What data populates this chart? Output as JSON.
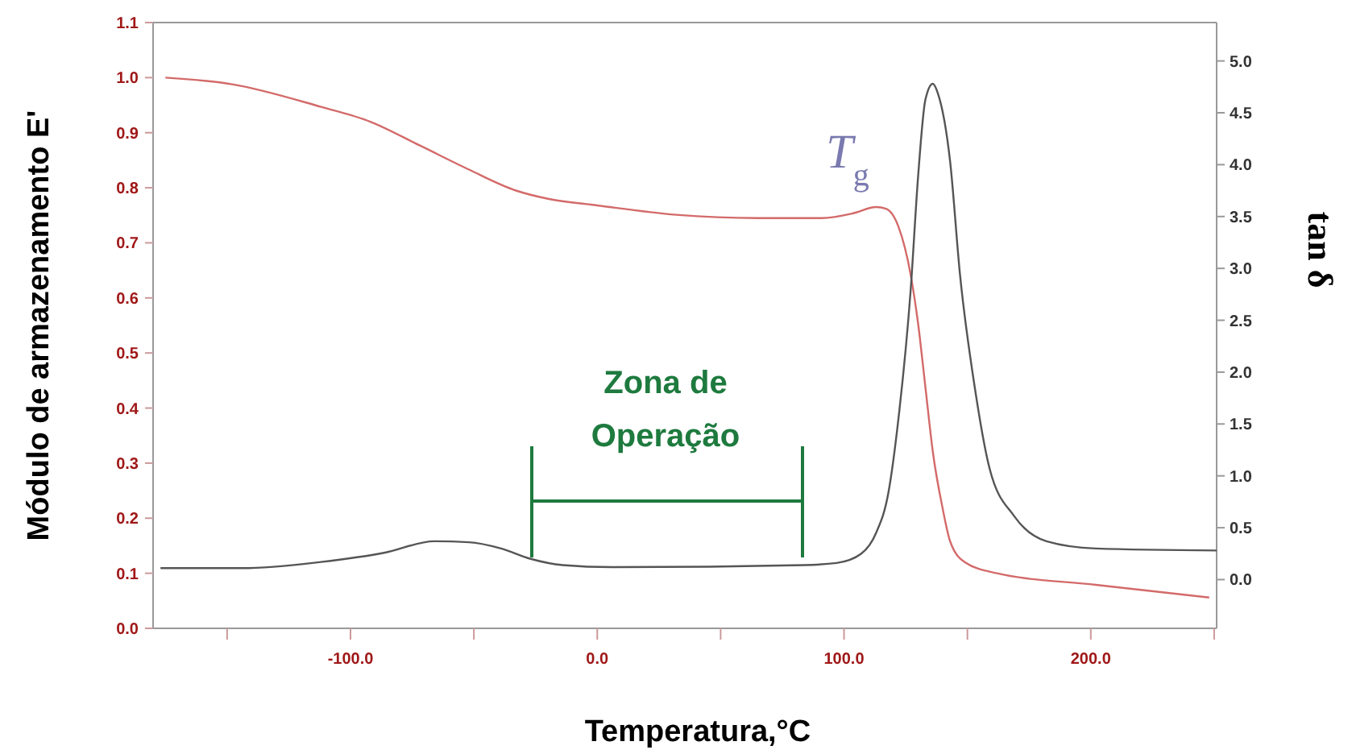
{
  "chart_data": {
    "type": "line",
    "xlabel": "Temperatura,°C",
    "ylabel": "Módulo de armazenamento E'",
    "y2label": "tan δ",
    "xlim": [
      -180,
      251
    ],
    "xticks": [
      {
        "value": -150,
        "label": null
      },
      {
        "value": -100,
        "label": "-100.0"
      },
      {
        "value": -50,
        "label": null
      },
      {
        "value": 0,
        "label": "0.0"
      },
      {
        "value": 50,
        "label": null
      },
      {
        "value": 100,
        "label": "100.0"
      },
      {
        "value": 150,
        "label": null
      },
      {
        "value": 200,
        "label": "200.0"
      },
      {
        "value": 250,
        "label": null
      }
    ],
    "ylim": [
      0,
      1.1
    ],
    "yticks": [
      {
        "value": 0,
        "label": "0.0"
      },
      {
        "value": 0.1,
        "label": "0.1"
      },
      {
        "value": 0.2,
        "label": "0.2"
      },
      {
        "value": 0.3,
        "label": "0.3"
      },
      {
        "value": 0.4,
        "label": "0.4"
      },
      {
        "value": 0.5,
        "label": "0.5"
      },
      {
        "value": 0.6,
        "label": "0.6"
      },
      {
        "value": 0.7,
        "label": "0.7"
      },
      {
        "value": 0.8,
        "label": "0.8"
      },
      {
        "value": 0.9,
        "label": "0.9"
      },
      {
        "value": 1,
        "label": "1.0"
      },
      {
        "value": 1.1,
        "label": "1.1"
      }
    ],
    "y2lim": [
      -0.47,
      5.37
    ],
    "y2ticks": [
      {
        "value": 0,
        "label": "0.0"
      },
      {
        "value": 0.5,
        "label": "0.5"
      },
      {
        "value": 1,
        "label": "1.0"
      },
      {
        "value": 1.5,
        "label": "1.5"
      },
      {
        "value": 2,
        "label": "2.0"
      },
      {
        "value": 2.5,
        "label": "2.5"
      },
      {
        "value": 3,
        "label": "3.0"
      },
      {
        "value": 3.5,
        "label": "3.5"
      },
      {
        "value": 4,
        "label": "4.0"
      },
      {
        "value": 4.5,
        "label": "4.5"
      },
      {
        "value": 5,
        "label": "5.0"
      }
    ],
    "series": [
      {
        "color": "#d46a6a",
        "x": [
          -175,
          -148,
          -112,
          -92,
          -72,
          -52,
          -33,
          -20,
          0,
          32,
          65,
          91,
          104,
          113,
          117,
          122,
          127,
          130,
          133,
          136,
          140,
          143,
          149,
          162,
          202,
          248
        ],
        "values": [
          1.0,
          0.988,
          0.947,
          0.92,
          0.877,
          0.833,
          0.795,
          0.78,
          0.768,
          0.751,
          0.745,
          0.745,
          0.754,
          0.765,
          0.762,
          0.73,
          0.642,
          0.554,
          0.437,
          0.32,
          0.217,
          0.158,
          0.12,
          0.1,
          0.079,
          0.056
        ]
      },
      {
        "color": "#555555",
        "axis": "y2",
        "x": [
          -177,
          -144,
          -112,
          -86,
          -66,
          -52,
          -39,
          -27,
          -14,
          6,
          84,
          97,
          107,
          113,
          118,
          122,
          127,
          130,
          133,
          136,
          138,
          143,
          147,
          153,
          159,
          169,
          182,
          202,
          251
        ],
        "values": [
          0.11,
          0.11,
          0.17,
          0.26,
          0.37,
          0.36,
          0.3,
          0.2,
          0.14,
          0.12,
          0.14,
          0.16,
          0.25,
          0.45,
          0.84,
          1.54,
          2.79,
          3.88,
          4.63,
          4.78,
          4.69,
          4.03,
          2.94,
          1.85,
          1.07,
          0.61,
          0.37,
          0.3,
          0.28
        ]
      }
    ],
    "annotations": [
      "T$_{g}$",
      "Zona de\nOperação"
    ],
    "grid": false,
    "line_style": "solid"
  }
}
